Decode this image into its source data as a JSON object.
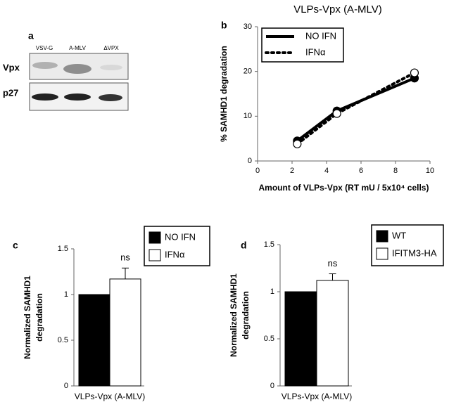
{
  "blot": {
    "panel_label": "a",
    "lanes": [
      "VSV-G",
      "A-MLV",
      "ΔVPX"
    ],
    "rows": [
      "Vpx",
      "p27"
    ]
  },
  "chart_data": [
    {
      "type": "line",
      "panel_label": "b",
      "title": "VLPs-Vpx (A-MLV)",
      "x_label": "Amount of VLPs-Vpx (RT mU / 5x10⁴ cells)",
      "y_label": "% SAMHD1 degradation",
      "x": [
        2.3,
        4.6,
        9.1
      ],
      "series": [
        {
          "name": "NO IFN",
          "color": "#000000",
          "style": "solid",
          "marker_fill": "#000000",
          "values": [
            4.5,
            11.2,
            18.5
          ]
        },
        {
          "name": "IFNα",
          "color": "#000000",
          "style": "dotted",
          "marker_fill": "#ffffff",
          "values": [
            3.8,
            10.6,
            19.7
          ]
        }
      ],
      "xlim": [
        0,
        10
      ],
      "xticks": [
        0,
        2,
        4,
        6,
        8,
        10
      ],
      "ylim": [
        0,
        30
      ],
      "yticks": [
        0,
        10,
        20,
        30
      ],
      "legend": "upper left"
    },
    {
      "type": "bar",
      "panel_label": "c",
      "y_label": [
        "Normalized  SAMHD1",
        "degradation"
      ],
      "categories": [
        "VLPs-Vpx (A-MLV)"
      ],
      "series": [
        {
          "name": "NO IFN",
          "color": "#000000",
          "values": [
            1.0
          ],
          "errors": [
            null
          ]
        },
        {
          "name": "IFNα",
          "color": "#ffffff",
          "values": [
            1.17
          ],
          "errors": [
            0.12
          ]
        }
      ],
      "annotation": "ns",
      "ylim": [
        0,
        1.5
      ],
      "yticks": [
        0,
        0.5,
        1,
        1.5
      ],
      "legend": "upper right"
    },
    {
      "type": "bar",
      "panel_label": "d",
      "y_label": [
        "Normalized  SAMHD1",
        "degradation"
      ],
      "categories": [
        "VLPs-Vpx (A-MLV)"
      ],
      "series": [
        {
          "name": "WT",
          "color": "#000000",
          "values": [
            1.0
          ],
          "errors": [
            null
          ]
        },
        {
          "name": "IFITM3-HA",
          "color": "#ffffff",
          "values": [
            1.12
          ],
          "errors": [
            0.07
          ]
        }
      ],
      "annotation": "ns",
      "ylim": [
        0,
        1.5
      ],
      "yticks": [
        0,
        0.5,
        1,
        1.5
      ],
      "legend": "upper right"
    }
  ]
}
